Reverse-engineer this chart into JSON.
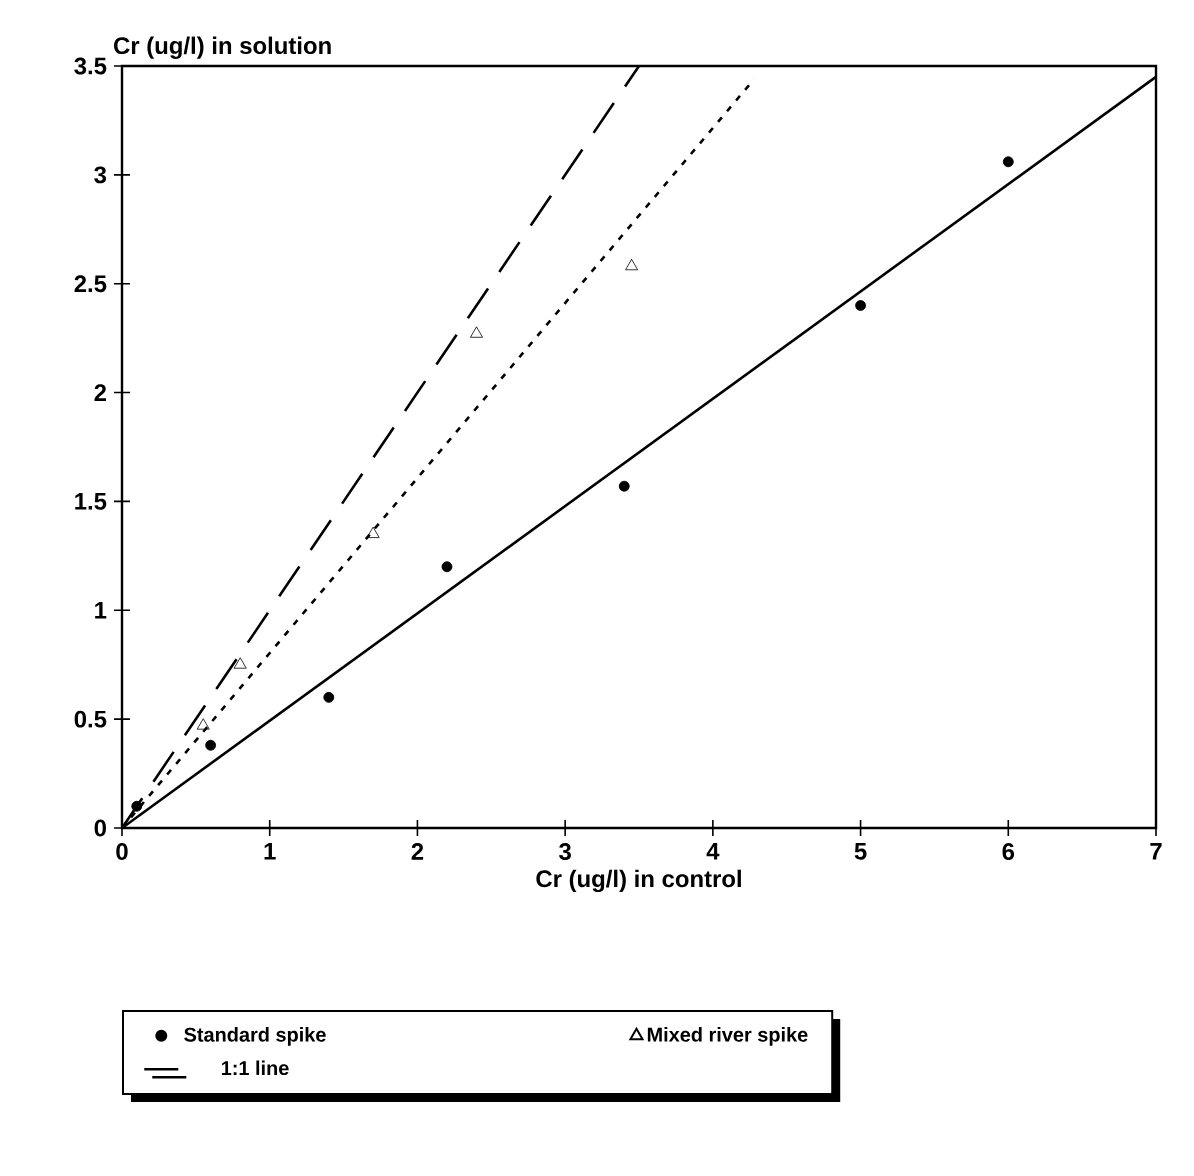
{
  "chart_data": {
    "type": "scatter",
    "xlabel": "Cr (ug/l) in control",
    "ylabel": "Cr (ug/l) in solution",
    "xlim": [
      0,
      7
    ],
    "ylim": [
      0,
      3.5
    ],
    "xticks": [
      0,
      1,
      2,
      3,
      4,
      5,
      6,
      7
    ],
    "yticks": [
      0,
      0.5,
      1,
      1.5,
      2,
      2.5,
      3,
      3.5
    ],
    "legend": "bottom",
    "grid": false,
    "series": [
      {
        "name": "Standard spike",
        "marker": "circle",
        "color": "#000000",
        "x": [
          0.1,
          0.6,
          1.4,
          2.2,
          3.4,
          5.0,
          6.0
        ],
        "values": [
          0.1,
          0.38,
          0.6,
          1.2,
          1.57,
          2.4,
          3.06
        ]
      },
      {
        "name": "Mixed river spike",
        "marker": "triangle",
        "color": "#000000",
        "x": [
          0.55,
          0.8,
          1.7,
          2.4,
          3.45
        ],
        "values": [
          0.47,
          0.75,
          1.35,
          2.27,
          2.58
        ]
      },
      {
        "name": "1:1 line",
        "type": "line",
        "line_style": "dashed",
        "color": "#000000",
        "x": [
          0,
          3.5
        ],
        "values": [
          0,
          3.5
        ]
      },
      {
        "type": "line",
        "line_style": "solid",
        "color": "#000000",
        "x": [
          0,
          7
        ],
        "values": [
          0,
          3.45
        ]
      },
      {
        "type": "line",
        "line_style": "dotted",
        "color": "#000000",
        "x": [
          0,
          4.28
        ],
        "values": [
          0,
          3.44
        ]
      }
    ]
  }
}
